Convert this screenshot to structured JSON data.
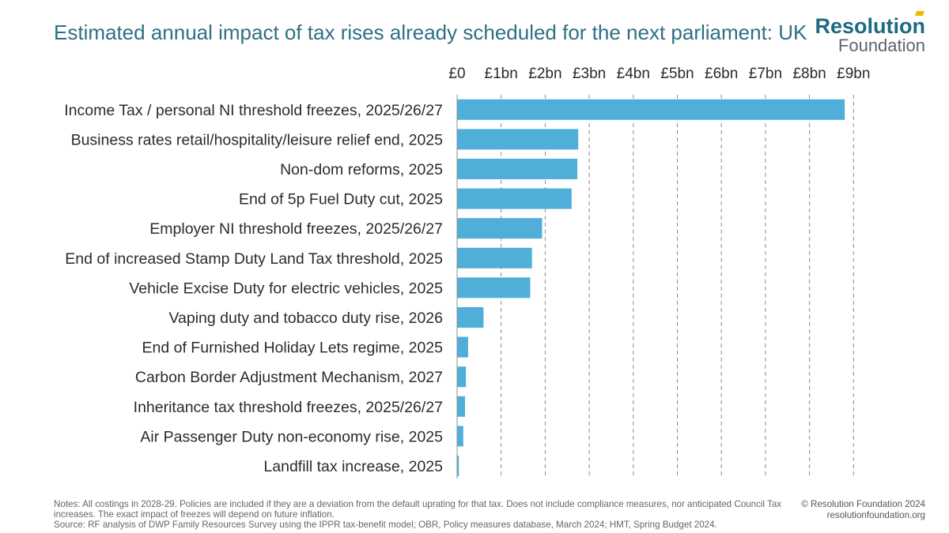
{
  "title": "Estimated annual impact of tax rises already scheduled for the next parliament: UK",
  "logo": {
    "main": "Resolution",
    "sub": "Foundation"
  },
  "notes": {
    "line1": "Notes: All costings in 2028-29. Policies are included if they are a deviation from the default uprating for that tax. Does not include compliance measures, nor anticipated Council Tax increases. The exact impact of freezes will depend on future inflation.",
    "line2": "Source: RF analysis of DWP Family Resources Survey using the IPPR tax-benefit model; OBR, Policy measures database, March 2024; HMT, Spring Budget 2024."
  },
  "copyright": {
    "line1": "© Resolution Foundation 2024",
    "line2": "resolutionfoundation.org"
  },
  "colors": {
    "bar": "#4fafd9",
    "title": "#2f6f85",
    "grid": "#8c8c8c"
  },
  "chart_data": {
    "type": "bar",
    "orientation": "horizontal",
    "xaxis_position": "top",
    "xlim": [
      0,
      9
    ],
    "xticks": [
      0,
      1,
      2,
      3,
      4,
      5,
      6,
      7,
      8,
      9
    ],
    "xtick_labels": [
      "£0",
      "£1bn",
      "£2bn",
      "£3bn",
      "£4bn",
      "£5bn",
      "£6bn",
      "£7bn",
      "£8bn",
      "£9bn"
    ],
    "grid": "vertical dashed",
    "categories": [
      "Income Tax / personal NI threshold freezes, 2025/26/27",
      "Business rates retail/hospitality/leisure relief end, 2025",
      "Non-dom reforms, 2025",
      "End of 5p Fuel Duty cut, 2025",
      "Employer NI threshold freezes, 2025/26/27",
      "End of increased Stamp Duty Land Tax threshold, 2025",
      "Vehicle Excise Duty for electric vehicles, 2025",
      "Vaping duty and tobacco duty rise, 2026",
      "End of Furnished Holiday Lets regime, 2025",
      "Carbon Border Adjustment Mechanism, 2027",
      "Inheritance tax threshold freezes, 2025/26/27",
      "Air Passenger Duty non-economy rise, 2025",
      "Landfill tax increase, 2025"
    ],
    "values": [
      8.8,
      2.75,
      2.73,
      2.6,
      1.93,
      1.7,
      1.66,
      0.6,
      0.25,
      0.2,
      0.18,
      0.14,
      0.04
    ]
  }
}
